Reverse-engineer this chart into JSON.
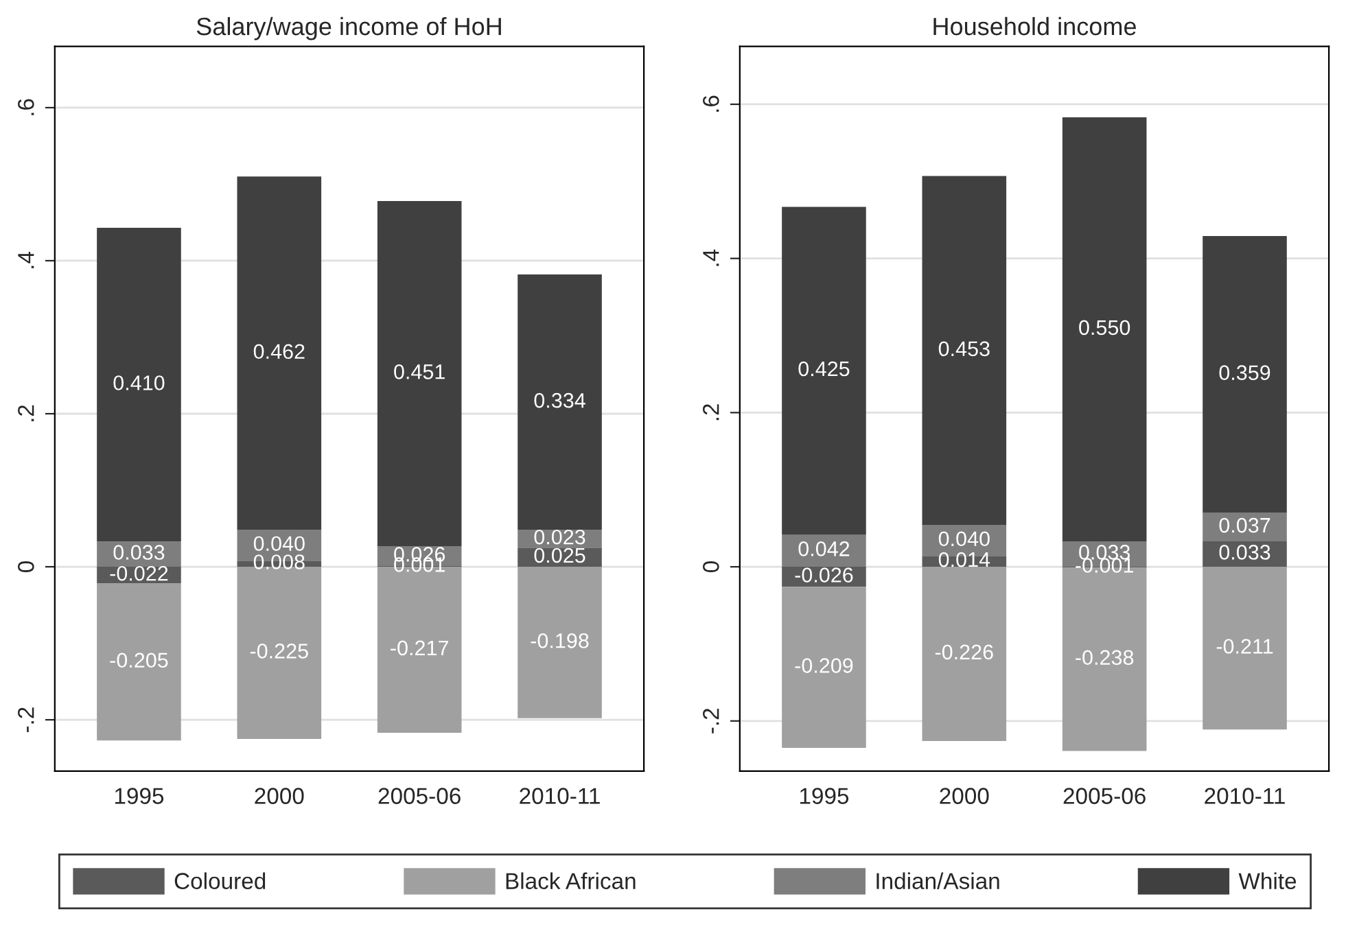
{
  "chart_data": [
    {
      "type": "bar",
      "stacked": true,
      "title": "Salary/wage income of HoH",
      "categories": [
        "1995",
        "2000",
        "2005-06",
        "2010-11"
      ],
      "series": [
        {
          "name": "Coloured",
          "color": "#5a5a5a",
          "values": [
            -0.022,
            0.008,
            0.001,
            0.025
          ],
          "value_labels": [
            "-0.022",
            "0.008",
            "0.001",
            "0.025"
          ]
        },
        {
          "name": "Black African",
          "color": "#a0a0a0",
          "values": [
            -0.205,
            -0.225,
            -0.217,
            -0.198
          ],
          "value_labels": [
            "-0.205",
            "-0.225",
            "-0.217",
            "-0.198"
          ]
        },
        {
          "name": "Indian/Asian",
          "color": "#7e7e7e",
          "values": [
            0.033,
            0.04,
            0.026,
            0.023
          ],
          "value_labels": [
            "0.033",
            "0.040",
            "0.026",
            "0.023"
          ]
        },
        {
          "name": "White",
          "color": "#404040",
          "values": [
            0.41,
            0.462,
            0.451,
            0.334
          ],
          "value_labels": [
            "0.410",
            "0.462",
            "0.451",
            "0.334"
          ]
        }
      ],
      "ylim": [
        -0.267,
        0.68
      ],
      "yticks": [
        {
          "value": -0.2,
          "label": "-.2"
        },
        {
          "value": 0,
          "label": "0"
        },
        {
          "value": 0.2,
          "label": ".2"
        },
        {
          "value": 0.4,
          "label": ".4"
        },
        {
          "value": 0.6,
          "label": ".6"
        }
      ],
      "grid": "y",
      "legend": "bottom"
    },
    {
      "type": "bar",
      "stacked": true,
      "title": "Household income",
      "categories": [
        "1995",
        "2000",
        "2005-06",
        "2010-11"
      ],
      "series": [
        {
          "color": "#5a5a5a",
          "values": [
            -0.026,
            0.014,
            -0.001,
            0.033
          ],
          "value_labels": [
            "-0.026",
            "0.014",
            "-0.001",
            "0.033"
          ]
        },
        {
          "color": "#a0a0a0",
          "values": [
            -0.209,
            -0.226,
            -0.238,
            -0.211
          ],
          "value_labels": [
            "-0.209",
            "-0.226",
            "-0.238",
            "-0.211"
          ]
        },
        {
          "color": "#7e7e7e",
          "values": [
            0.042,
            0.04,
            0.033,
            0.037
          ],
          "value_labels": [
            "0.042",
            "0.040",
            "0.033",
            "0.037"
          ]
        },
        {
          "color": "#404040",
          "values": [
            0.425,
            0.453,
            0.55,
            0.359
          ],
          "value_labels": [
            "0.425",
            "0.453",
            "0.550",
            "0.359"
          ]
        }
      ],
      "ylim": [
        -0.265,
        0.675
      ],
      "yticks": [
        {
          "value": -0.2,
          "label": "-.2"
        },
        {
          "value": 0,
          "label": "0"
        },
        {
          "value": 0.2,
          "label": ".2"
        },
        {
          "value": 0.4,
          "label": ".4"
        },
        {
          "value": 0.6,
          "label": ".6"
        }
      ],
      "grid": "y"
    }
  ]
}
